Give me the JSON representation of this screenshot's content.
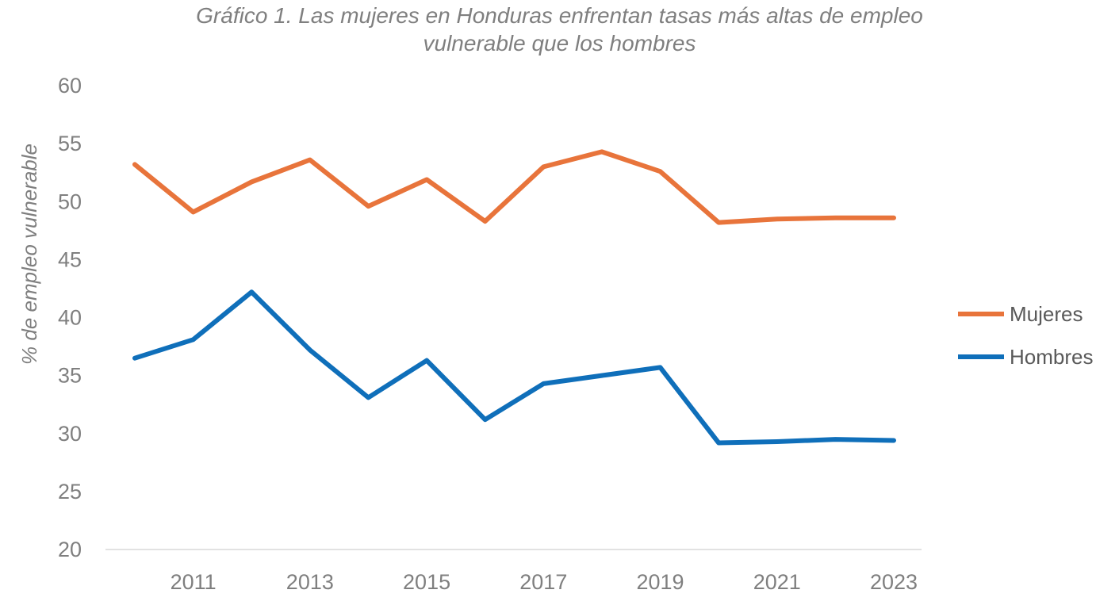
{
  "chart_data": {
    "type": "line",
    "title_lines": [
      "Gráfico 1. Las mujeres en Honduras enfrentan tasas más altas de empleo",
      "vulnerable que los hombres"
    ],
    "xlabel": "",
    "ylabel": "% de empleo vulnerable",
    "x": [
      2010,
      2011,
      2012,
      2013,
      2014,
      2015,
      2016,
      2017,
      2018,
      2019,
      2020,
      2021,
      2022,
      2023
    ],
    "x_tick_labels": [
      "2011",
      "2013",
      "2015",
      "2017",
      "2019",
      "2021",
      "2023"
    ],
    "y_ticks": [
      20,
      25,
      30,
      35,
      40,
      45,
      50,
      55,
      60
    ],
    "ylim": [
      20,
      60
    ],
    "grid": false,
    "legend_position": "right",
    "series": [
      {
        "name": "Mujeres",
        "color": "#e8743b",
        "values": [
          53.2,
          49.1,
          51.7,
          53.6,
          49.6,
          51.9,
          48.3,
          53.0,
          54.3,
          52.6,
          48.2,
          48.5,
          48.6,
          48.6
        ]
      },
      {
        "name": "Hombres",
        "color": "#0f6fba",
        "values": [
          36.5,
          38.1,
          42.2,
          37.2,
          33.1,
          36.3,
          31.2,
          34.3,
          35.0,
          35.7,
          29.2,
          29.3,
          29.5,
          29.4
        ]
      }
    ]
  }
}
